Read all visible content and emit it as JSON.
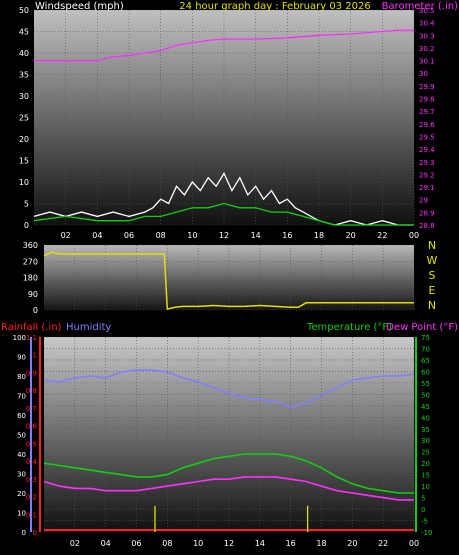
{
  "chart_data": [
    {
      "type": "line",
      "title": "24 hour graph day : February 03 2026",
      "left_axis_label": "Windspeed (mph)",
      "right_axis_label": "Barometer (.in)",
      "x_tick_labels": [
        "02",
        "04",
        "06",
        "08",
        "10",
        "12",
        "14",
        "16",
        "18",
        "20",
        "22",
        "00"
      ],
      "left_axis": {
        "ticks": [
          0,
          5,
          10,
          15,
          20,
          25,
          30,
          35,
          40,
          45,
          50
        ],
        "range": [
          0,
          50
        ]
      },
      "right_axis": {
        "ticks": [
          "28.8",
          "28.9",
          "29",
          "29.1",
          "29.2",
          "29.3",
          "29.4",
          "29.5",
          "29.6",
          "29.7",
          "29.8",
          "29.9",
          "30",
          "30.1",
          "30.2",
          "30.3",
          "30.4",
          "30.5"
        ],
        "range": [
          28.8,
          30.5
        ]
      },
      "series": [
        {
          "name": "Barometer",
          "color": "#ff30ff",
          "axis": "right",
          "x": [
            0,
            2,
            4,
            5,
            6,
            7,
            8,
            9,
            10,
            11,
            12,
            14,
            16,
            18,
            20,
            22,
            23,
            24
          ],
          "values": [
            30.1,
            30.1,
            30.1,
            30.13,
            30.14,
            30.16,
            30.18,
            30.22,
            30.24,
            30.26,
            30.27,
            30.27,
            30.28,
            30.3,
            30.31,
            30.33,
            30.34,
            30.34
          ]
        },
        {
          "name": "Wind gust",
          "color": "#ffffff",
          "axis": "left",
          "x": [
            0,
            1,
            2,
            3,
            4,
            5,
            6,
            7,
            7.5,
            8,
            8.5,
            9,
            9.5,
            10,
            10.5,
            11,
            11.5,
            12,
            12.5,
            13,
            13.5,
            14,
            14.5,
            15,
            15.5,
            16,
            16.5,
            17,
            17.5,
            18,
            19,
            20,
            21,
            22,
            23,
            24
          ],
          "values": [
            2,
            3,
            2,
            3,
            2,
            3,
            2,
            3,
            4,
            6,
            5,
            9,
            7,
            10,
            8,
            11,
            9,
            12,
            8,
            11,
            7,
            9,
            6,
            8,
            5,
            6,
            4,
            3,
            2,
            1,
            0,
            1,
            0,
            1,
            0,
            0
          ]
        },
        {
          "name": "Wind speed",
          "color": "#10d010",
          "axis": "left",
          "x": [
            0,
            2,
            4,
            6,
            7,
            8,
            9,
            10,
            11,
            12,
            13,
            14,
            15,
            16,
            17,
            18,
            19,
            20,
            22,
            24
          ],
          "values": [
            1,
            2,
            1,
            1,
            2,
            2,
            3,
            4,
            4,
            5,
            4,
            4,
            3,
            3,
            2,
            1,
            0,
            0,
            0,
            0
          ]
        }
      ]
    },
    {
      "type": "line",
      "right_labels": [
        "N",
        "W",
        "S",
        "E",
        "N"
      ],
      "left_axis": {
        "ticks": [
          0,
          90,
          180,
          270,
          360
        ],
        "range": [
          0,
          360
        ]
      },
      "series": [
        {
          "name": "Wind direction",
          "color": "#e0e000",
          "x": [
            0,
            0.5,
            1,
            2,
            3,
            4,
            5,
            6,
            7,
            7.8,
            8,
            8.5,
            9,
            10,
            11,
            12,
            13,
            14,
            15,
            16,
            16.5,
            17,
            18,
            20,
            22,
            24
          ],
          "values": [
            300,
            320,
            310,
            310,
            310,
            310,
            310,
            310,
            310,
            310,
            5,
            15,
            20,
            20,
            25,
            20,
            20,
            25,
            20,
            15,
            15,
            40,
            40,
            40,
            40,
            40
          ]
        }
      ]
    },
    {
      "type": "line",
      "rain_axis_label": "Rainfall (.in)",
      "humidity_axis_label": "Humidity",
      "temp_axis_label": "Temperature (°F)",
      "dewpoint_axis_label": "Dew Point (°F)",
      "x_tick_labels": [
        "02",
        "04",
        "06",
        "08",
        "10",
        "12",
        "14",
        "16",
        "18",
        "20",
        "22",
        "00"
      ],
      "rain_axis": {
        "ticks": [
          "0",
          "0.1",
          "0.2",
          "0.3",
          "0.4",
          "0.5",
          "0.6",
          "0.7",
          "0.8",
          "0.9",
          "1",
          "1.1"
        ],
        "range": [
          0,
          1.1
        ]
      },
      "humidity_axis": {
        "ticks": [
          0,
          10,
          20,
          30,
          40,
          50,
          60,
          70,
          80,
          90,
          100
        ],
        "range": [
          0,
          100
        ]
      },
      "temp_axis": {
        "ticks": [
          -10,
          -5,
          0,
          5,
          10,
          15,
          20,
          25,
          30,
          35,
          40,
          45,
          50,
          55,
          60,
          65,
          70,
          75
        ],
        "range": [
          -10,
          75
        ]
      },
      "series": [
        {
          "name": "Humidity",
          "color": "#8080ff",
          "axis": "humidity",
          "x": [
            0,
            1,
            2,
            3,
            4,
            5,
            6,
            7,
            8,
            9,
            10,
            11,
            12,
            13,
            14,
            15,
            16,
            17,
            18,
            19,
            20,
            21,
            22,
            23,
            24
          ],
          "values": [
            78,
            77,
            79,
            80,
            79,
            82,
            83,
            83,
            82,
            79,
            77,
            74,
            71,
            69,
            68,
            67,
            64,
            66,
            70,
            74,
            78,
            79,
            80,
            80,
            81
          ]
        },
        {
          "name": "Temperature",
          "color": "#10d010",
          "axis": "temp",
          "x": [
            0,
            1,
            2,
            3,
            4,
            5,
            6,
            7,
            8,
            9,
            10,
            11,
            12,
            13,
            14,
            15,
            16,
            17,
            18,
            19,
            20,
            21,
            22,
            23,
            24
          ],
          "values": [
            20,
            19,
            18,
            17,
            16,
            15,
            14,
            14,
            15,
            18,
            20,
            22,
            23,
            24,
            24,
            24,
            23,
            21,
            18,
            14,
            11,
            9,
            8,
            7,
            7
          ]
        },
        {
          "name": "Dew Point",
          "color": "#ff30ff",
          "axis": "temp",
          "x": [
            0,
            1,
            2,
            3,
            4,
            5,
            6,
            7,
            8,
            9,
            10,
            11,
            12,
            13,
            14,
            15,
            16,
            17,
            18,
            19,
            20,
            21,
            22,
            23,
            24
          ],
          "values": [
            12,
            10,
            9,
            9,
            8,
            8,
            8,
            9,
            10,
            11,
            12,
            13,
            13,
            14,
            14,
            14,
            13,
            12,
            10,
            8,
            7,
            6,
            5,
            4,
            4
          ]
        },
        {
          "name": "Rainfall",
          "color": "#ff2020",
          "axis": "rain",
          "x": [
            0,
            24
          ],
          "values": [
            0,
            0
          ]
        },
        {
          "name": "Rain rate",
          "color": "#e0e000",
          "axis": "rain",
          "x": [
            7.2,
            17.1
          ],
          "values": [
            0.08,
            0.08
          ]
        }
      ]
    }
  ]
}
